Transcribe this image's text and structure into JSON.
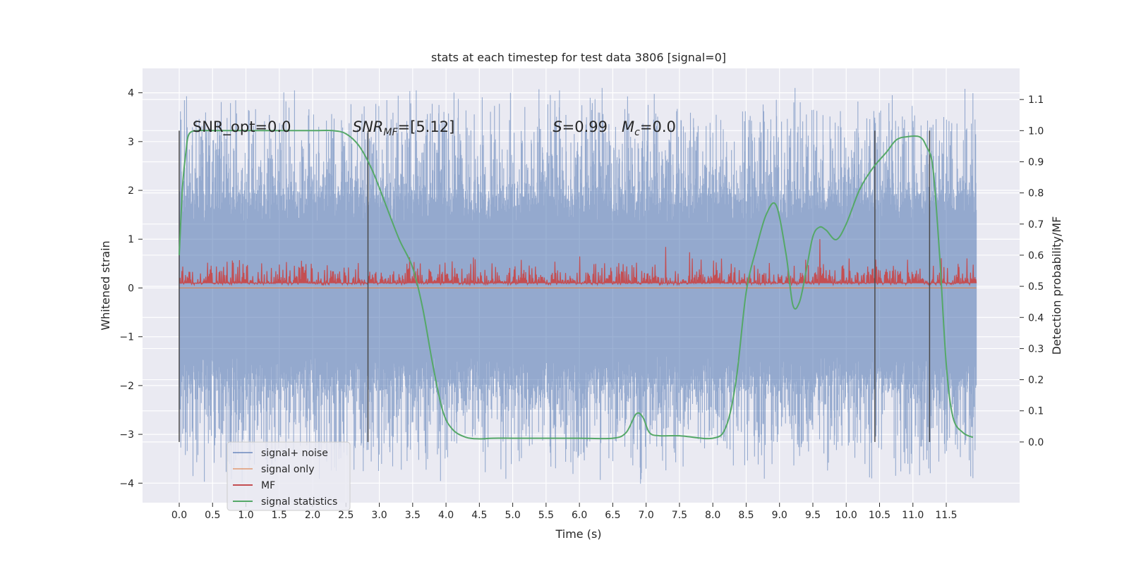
{
  "chart_data": {
    "type": "line",
    "title": "stats at each timestep for test data 3806 [signal=0]",
    "xlabel": "Time (s)",
    "ylabel": "Whitened strain",
    "y2label": "Detection probability/MF",
    "xlim": [
      -0.55,
      12.6
    ],
    "ylim": [
      -4.4,
      4.5
    ],
    "y2lim": [
      -0.195,
      1.2
    ],
    "x_ticks": [
      0.0,
      0.5,
      1.0,
      1.5,
      2.0,
      2.5,
      3.0,
      3.5,
      4.0,
      4.5,
      5.0,
      5.5,
      6.0,
      6.5,
      7.0,
      7.5,
      8.0,
      8.5,
      9.0,
      9.5,
      10.0,
      10.5,
      11.0,
      11.5
    ],
    "x_tick_labels": [
      "0.0",
      "0.5",
      "1.0",
      "1.5",
      "2.0",
      "2.5",
      "3.0",
      "3.5",
      "4.0",
      "4.5",
      "5.0",
      "5.5",
      "6.0",
      "6.5",
      "7.0",
      "7.5",
      "8.0",
      "8.5",
      "9.0",
      "9.5",
      "10.0",
      "10.5",
      "11.0",
      "11.5"
    ],
    "y_ticks": [
      -4,
      -3,
      -2,
      -1,
      0,
      1,
      2,
      3,
      4
    ],
    "y_tick_labels": [
      "−4",
      "−3",
      "−2",
      "−1",
      "0",
      "1",
      "2",
      "3",
      "4"
    ],
    "y2_ticks": [
      0.0,
      0.1,
      0.2,
      0.3,
      0.4,
      0.5,
      0.6,
      0.7,
      0.8,
      0.9,
      1.0,
      1.1
    ],
    "y2_tick_labels": [
      "0.0",
      "0.1",
      "0.2",
      "0.3",
      "0.4",
      "0.5",
      "0.6",
      "0.7",
      "0.8",
      "0.9",
      "1.0",
      "1.1"
    ],
    "grid": true,
    "legend_position": "bottom-left",
    "annotations": [
      {
        "text": "SNR_opt=0.0",
        "x": 0.2,
        "y": 3.3
      },
      {
        "text": "SNR_MF=[5.12]",
        "x": 2.6,
        "y": 3.3
      },
      {
        "text": "S=0.99   M_c=0.0",
        "x": 5.6,
        "y": 3.3
      }
    ],
    "vertical_markers": [
      0.0,
      2.83,
      10.43,
      11.25
    ],
    "series": [
      {
        "name": "signal+ noise",
        "color": "#4c72b0",
        "axis": "left",
        "style": "dense noise",
        "x_range": [
          0.0,
          11.95
        ],
        "peak_max": 4.1,
        "peak_min": -4.05
      },
      {
        "name": "signal only",
        "color": "#dd8452",
        "axis": "left",
        "style": "flat",
        "x": [
          0.0,
          11.95
        ],
        "y": [
          0,
          0
        ]
      },
      {
        "name": "MF",
        "color": "#c44e52",
        "axis": "right",
        "style": "noise band",
        "x_range": [
          0.0,
          11.95
        ],
        "band": [
          0.505,
          0.6
        ],
        "peak_max": 0.66
      },
      {
        "name": "signal statistics",
        "color": "#55a868",
        "axis": "right",
        "x": [
          0.0,
          0.05,
          0.1,
          0.15,
          0.3,
          0.5,
          1.0,
          1.5,
          2.0,
          2.3,
          2.5,
          2.7,
          2.9,
          3.1,
          3.3,
          3.5,
          3.65,
          3.8,
          3.95,
          4.1,
          4.3,
          4.5,
          4.7,
          5.0,
          5.5,
          6.0,
          6.5,
          6.7,
          6.85,
          6.95,
          7.05,
          7.2,
          7.5,
          8.0,
          8.2,
          8.35,
          8.5,
          8.65,
          8.8,
          8.95,
          9.1,
          9.2,
          9.3,
          9.4,
          9.5,
          9.6,
          9.7,
          9.85,
          10.0,
          10.2,
          10.4,
          10.6,
          10.75,
          10.9,
          11.1,
          11.2,
          11.3,
          11.4,
          11.5,
          11.6,
          11.75,
          11.9
        ],
        "y": [
          0.6,
          0.82,
          0.93,
          0.99,
          1.0,
          1.0,
          1.0,
          1.0,
          1.0,
          1.0,
          0.99,
          0.95,
          0.87,
          0.76,
          0.65,
          0.56,
          0.43,
          0.25,
          0.1,
          0.04,
          0.015,
          0.01,
          0.012,
          0.012,
          0.012,
          0.012,
          0.012,
          0.03,
          0.09,
          0.08,
          0.03,
          0.02,
          0.02,
          0.012,
          0.05,
          0.2,
          0.48,
          0.62,
          0.73,
          0.76,
          0.6,
          0.44,
          0.45,
          0.55,
          0.66,
          0.69,
          0.68,
          0.65,
          0.7,
          0.81,
          0.88,
          0.93,
          0.97,
          0.98,
          0.98,
          0.95,
          0.88,
          0.6,
          0.25,
          0.08,
          0.03,
          0.015
        ]
      }
    ]
  }
}
